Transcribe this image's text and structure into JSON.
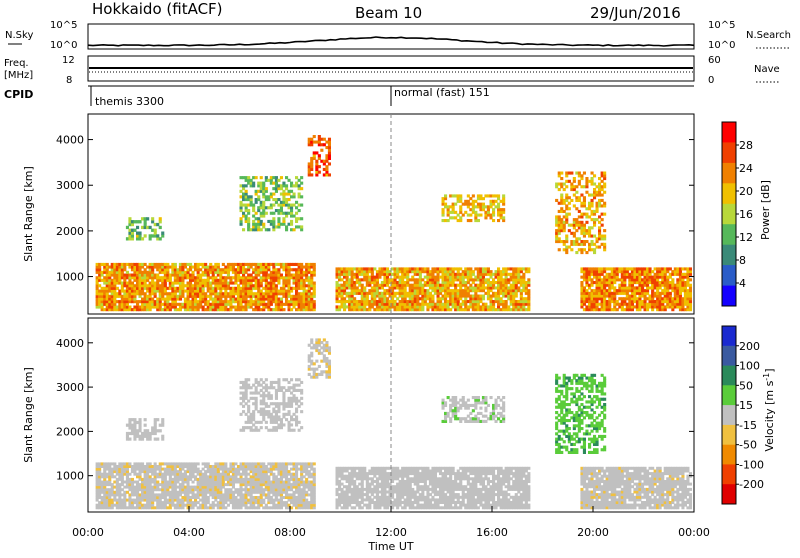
{
  "header": {
    "radar": "Hokkaido (fitACF)",
    "beam": "Beam 10",
    "date": "29/Jun/2016"
  },
  "strips": {
    "nsky_label": "N.Sky",
    "nsky_ticks": [
      "10^5",
      "10^0"
    ],
    "nsearch_label": "N.Search",
    "nsearch_ticks": [
      "10^5",
      "10^0"
    ],
    "freq_label_line1": "Freq.",
    "freq_label_line2": "[MHz]",
    "freq_ticks": [
      "12",
      "8"
    ],
    "nave_label": "Nave",
    "nave_ticks": [
      "60",
      "0"
    ],
    "cpid_label": "CPID",
    "cpid_segments": [
      {
        "name": "themis 3300",
        "start": "00:00"
      },
      {
        "name": "normal (fast) 151",
        "start": "12:00"
      }
    ]
  },
  "chart_data": [
    {
      "type": "heatmap",
      "panel": "power",
      "ylabel": "Slant Range [km]",
      "ylim": [
        180,
        4560
      ],
      "yticks": [
        1000,
        2000,
        3000,
        4000
      ],
      "xlim": [
        "00:00",
        "24:00"
      ],
      "colorbar": {
        "label": "Power [dB]",
        "ticks": [
          4,
          8,
          12,
          16,
          20,
          24,
          28
        ],
        "range": [
          0,
          32
        ],
        "colors": [
          "#1400ff",
          "#2a5cc8",
          "#3a8a78",
          "#56b85a",
          "#b8d83a",
          "#f0c000",
          "#f08000",
          "#f04000",
          "#ff0000"
        ]
      },
      "echo_regions": [
        {
          "t_start": 0.3,
          "t_end": 9.0,
          "r_min": 250,
          "r_max": 1300,
          "level": 22
        },
        {
          "t_start": 9.8,
          "t_end": 17.5,
          "r_min": 250,
          "r_max": 1200,
          "level": 21
        },
        {
          "t_start": 19.5,
          "t_end": 23.9,
          "r_min": 250,
          "r_max": 1200,
          "level": 23
        },
        {
          "t_start": 8.7,
          "t_end": 9.6,
          "r_min": 3200,
          "r_max": 4100,
          "level": 26
        },
        {
          "t_start": 14.0,
          "t_end": 16.5,
          "r_min": 2200,
          "r_max": 2800,
          "level": 20
        },
        {
          "t_start": 18.5,
          "t_end": 20.5,
          "r_min": 1500,
          "r_max": 3300,
          "level": 21
        },
        {
          "t_start": 1.5,
          "t_end": 3.0,
          "r_min": 1800,
          "r_max": 2300,
          "level": 13
        },
        {
          "t_start": 6.0,
          "t_end": 8.5,
          "r_min": 2000,
          "r_max": 3200,
          "level": 14
        }
      ]
    },
    {
      "type": "heatmap",
      "panel": "velocity",
      "ylabel": "Slant Range [km]",
      "ylim": [
        180,
        4560
      ],
      "yticks": [
        1000,
        2000,
        3000,
        4000
      ],
      "xlabel": "Time UT",
      "xticks": [
        "00:00",
        "04:00",
        "08:00",
        "12:00",
        "16:00",
        "20:00",
        "00:00"
      ],
      "xlim": [
        "00:00",
        "24:00"
      ],
      "colorbar": {
        "label": "Velocity [m s^-1]",
        "ticks": [
          200,
          100,
          50,
          15,
          -15,
          -50,
          -100,
          -200
        ],
        "colors": [
          "#1a2ad0",
          "#3a5aa0",
          "#2a8a5a",
          "#5acc3a",
          "#c0c0c0",
          "#f0c040",
          "#f08a00",
          "#f04000",
          "#e00000"
        ]
      },
      "echo_regions": [
        {
          "t_start": 0.3,
          "t_end": 9.0,
          "r_min": 250,
          "r_max": 1300,
          "level": -5
        },
        {
          "t_start": 9.8,
          "t_end": 17.5,
          "r_min": 250,
          "r_max": 1200,
          "level": 0
        },
        {
          "t_start": 19.5,
          "t_end": 23.9,
          "r_min": 250,
          "r_max": 1200,
          "level": -3
        },
        {
          "t_start": 8.7,
          "t_end": 9.6,
          "r_min": 3200,
          "r_max": 4100,
          "level": -8
        },
        {
          "t_start": 14.0,
          "t_end": 16.5,
          "r_min": 2200,
          "r_max": 2800,
          "level": 5
        },
        {
          "t_start": 18.5,
          "t_end": 20.5,
          "r_min": 1500,
          "r_max": 3300,
          "level": 40
        },
        {
          "t_start": 1.5,
          "t_end": 3.0,
          "r_min": 1800,
          "r_max": 2300,
          "level": 0
        },
        {
          "t_start": 6.0,
          "t_end": 8.5,
          "r_min": 2000,
          "r_max": 3200,
          "level": 0
        }
      ]
    }
  ]
}
